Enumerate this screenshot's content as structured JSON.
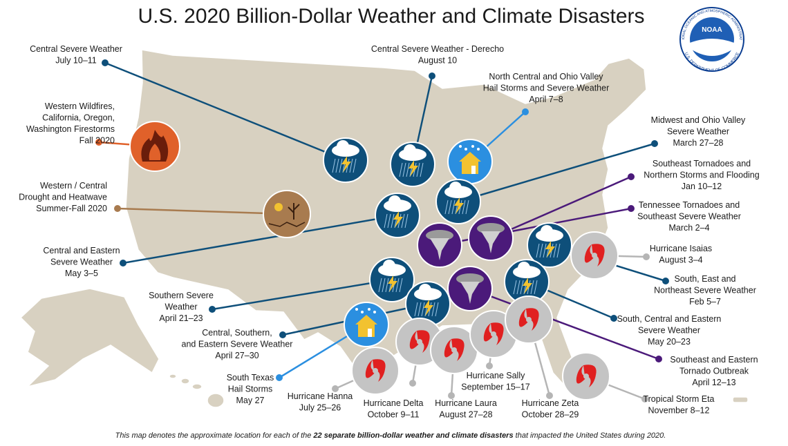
{
  "title": "U.S. 2020 Billion-Dollar Weather and Climate Disasters",
  "logo": {
    "name": "NOAA",
    "agency": "NATIONAL OCEANIC AND ATMOSPHERIC ADMINISTRATION",
    "department": "U.S. DEPARTMENT OF COMMERCE"
  },
  "events": [
    {
      "lines": [
        "Central Severe Weather",
        "July 10–11"
      ]
    },
    {
      "lines": [
        "Central Severe Weather - Derecho",
        "August 10"
      ]
    },
    {
      "lines": [
        "North Central and Ohio Valley",
        "Hail Storms and Severe Weather",
        "April 7–8"
      ]
    },
    {
      "lines": [
        "Western Wildfires,",
        "California, Oregon,",
        "Washington Firestorms",
        "Fall 2020"
      ]
    },
    {
      "lines": [
        "Western / Central",
        "Drought and Heatwave",
        "Summer-Fall 2020"
      ]
    },
    {
      "lines": [
        "Midwest and Ohio Valley",
        "Severe Weather",
        "March 27–28"
      ]
    },
    {
      "lines": [
        "Southeast Tornadoes and",
        "Northern Storms and Flooding",
        "Jan 10–12"
      ]
    },
    {
      "lines": [
        "Tennessee Tornadoes and",
        "Southeast Severe Weather",
        "March 2–4"
      ]
    },
    {
      "lines": [
        "Central and Eastern",
        "Severe Weather",
        "May 3–5"
      ]
    },
    {
      "lines": [
        "Hurricane Isaias",
        "August 3–4"
      ]
    },
    {
      "lines": [
        "South, East and",
        "Northeast Severe Weather",
        "Feb 5–7"
      ]
    },
    {
      "lines": [
        "Southern Severe",
        "Weather",
        "April 21–23"
      ]
    },
    {
      "lines": [
        "South, Central and Eastern",
        "Severe Weather",
        "May 20–23"
      ]
    },
    {
      "lines": [
        "Central, Southern,",
        "and Eastern Severe Weather",
        "April 27–30"
      ]
    },
    {
      "lines": [
        "Southeast and Eastern",
        "Tornado Outbreak",
        "April 12–13"
      ]
    },
    {
      "lines": [
        "South Texas",
        "Hail Storms",
        "May 27"
      ]
    },
    {
      "lines": [
        "Hurricane Hanna",
        "July 25–26"
      ]
    },
    {
      "lines": [
        "Hurricane Delta",
        "October 9–11"
      ]
    },
    {
      "lines": [
        "Hurricane Laura",
        "August 27–28"
      ]
    },
    {
      "lines": [
        "Hurricane Sally",
        "September 15–17"
      ]
    },
    {
      "lines": [
        "Hurricane Zeta",
        "October 28–29"
      ]
    },
    {
      "lines": [
        "Tropical Storm Eta",
        "November 8–12"
      ]
    }
  ],
  "footnote": {
    "before": "This map denotes the approximate location for each of the ",
    "bold": "22 separate billion-dollar weather and climate disasters",
    "after": " that impacted the United States during 2020."
  }
}
